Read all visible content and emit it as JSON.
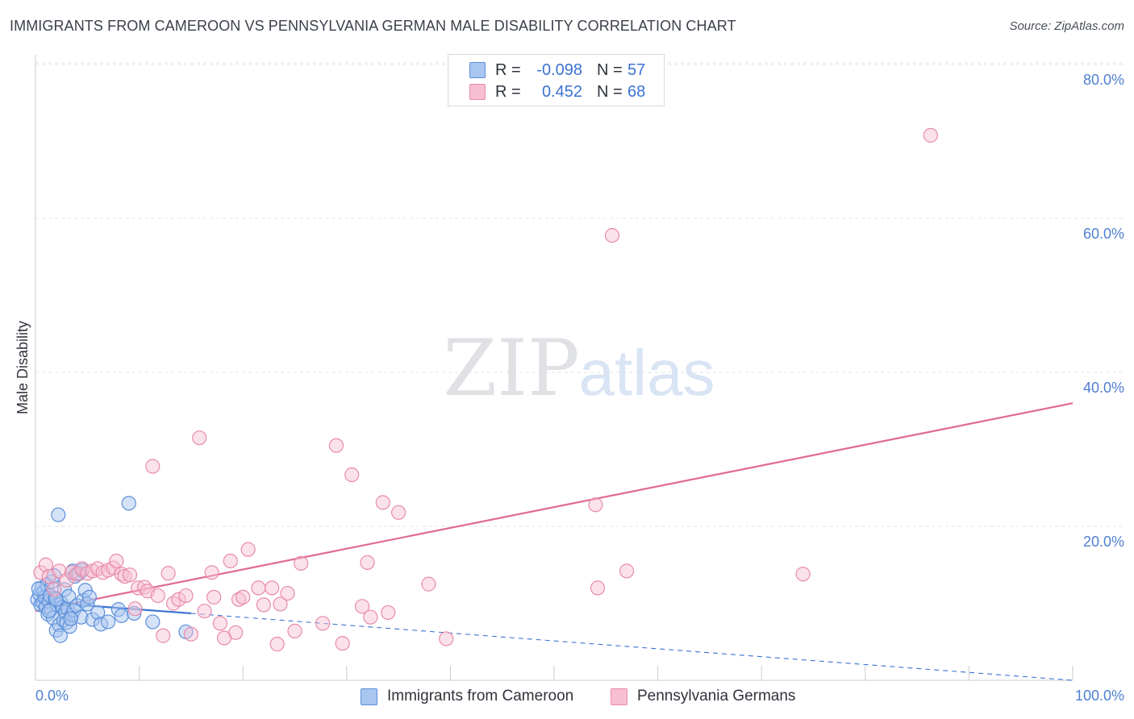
{
  "header": {
    "title": "IMMIGRANTS FROM CAMEROON VS PENNSYLVANIA GERMAN MALE DISABILITY CORRELATION CHART",
    "source": "Source: ZipAtlas.com"
  },
  "watermark": {
    "zip": "ZIP",
    "atlas": "atlas"
  },
  "legend": {
    "rows": [
      {
        "r_label": "R =",
        "r_value": "-0.098",
        "n_label": "N =",
        "n_value": "57"
      },
      {
        "r_label": "R =",
        "r_value": "0.452",
        "n_label": "N =",
        "n_value": "68"
      }
    ]
  },
  "bottom_legend": {
    "series1": "Immigrants from Cameroon",
    "series2": "Pennsylvania Germans"
  },
  "colors": {
    "cameroon_fill": "#a9c6f0",
    "cameroon_stroke": "#5b8fd9",
    "cameroon_line": "#3b73d3",
    "penn_fill": "#f7bfd1",
    "penn_stroke": "#e88aab",
    "penn_line": "#e06a94",
    "tick_text": "#4f7fd2"
  },
  "chart_data": {
    "type": "scatter",
    "title": "IMMIGRANTS FROM CAMEROON VS PENNSYLVANIA GERMAN MALE DISABILITY CORRELATION CHART",
    "xlabel": "",
    "ylabel": "Male Disability",
    "xlim": [
      0,
      100
    ],
    "ylim": [
      0,
      83
    ],
    "x_tick_labels": [
      {
        "value": 0,
        "label": "0.0%"
      },
      {
        "value": 100,
        "label": "100.0%"
      }
    ],
    "y_tick_labels": [
      {
        "value": 20,
        "label": "20.0%"
      },
      {
        "value": 40,
        "label": "40.0%"
      },
      {
        "value": 60,
        "label": "60.0%"
      },
      {
        "value": 80,
        "label": "80.0%"
      }
    ],
    "series": [
      {
        "name": "Immigrants from Cameroon",
        "r": -0.098,
        "n": 57,
        "trend_solid": {
          "x": [
            0,
            15
          ],
          "y": [
            10.2,
            8.7
          ]
        },
        "trend_dashed": {
          "x": [
            15,
            100
          ],
          "y": [
            8.7,
            0.0
          ]
        },
        "points": [
          [
            0.2,
            10.5
          ],
          [
            0.4,
            11.2
          ],
          [
            0.5,
            9.8
          ],
          [
            0.6,
            12.0
          ],
          [
            0.7,
            10.1
          ],
          [
            0.8,
            11.5
          ],
          [
            0.9,
            10.8
          ],
          [
            1.0,
            9.5
          ],
          [
            1.1,
            12.4
          ],
          [
            1.2,
            8.6
          ],
          [
            1.3,
            10.3
          ],
          [
            1.4,
            11.0
          ],
          [
            1.5,
            9.2
          ],
          [
            1.6,
            12.8
          ],
          [
            1.7,
            8.1
          ],
          [
            1.8,
            13.6
          ],
          [
            1.9,
            10.7
          ],
          [
            2.0,
            6.5
          ],
          [
            2.1,
            9.8
          ],
          [
            2.2,
            21.5
          ],
          [
            2.3,
            7.2
          ],
          [
            2.4,
            5.8
          ],
          [
            2.5,
            10.0
          ],
          [
            2.6,
            9.5
          ],
          [
            2.7,
            7.8
          ],
          [
            2.8,
            11.8
          ],
          [
            2.9,
            8.9
          ],
          [
            3.0,
            7.5
          ],
          [
            3.1,
            9.3
          ],
          [
            3.2,
            10.9
          ],
          [
            3.3,
            7.0
          ],
          [
            3.5,
            8.5
          ],
          [
            3.6,
            14.2
          ],
          [
            3.7,
            9.1
          ],
          [
            3.8,
            13.5
          ],
          [
            4.0,
            9.7
          ],
          [
            4.2,
            13.9
          ],
          [
            4.4,
            8.2
          ],
          [
            4.5,
            14.3
          ],
          [
            4.6,
            10.4
          ],
          [
            4.8,
            11.7
          ],
          [
            5.0,
            9.9
          ],
          [
            5.2,
            10.8
          ],
          [
            5.5,
            7.9
          ],
          [
            6.0,
            8.8
          ],
          [
            6.3,
            7.3
          ],
          [
            7.0,
            7.6
          ],
          [
            8.0,
            9.2
          ],
          [
            8.3,
            8.4
          ],
          [
            9.0,
            23.0
          ],
          [
            9.5,
            8.7
          ],
          [
            11.3,
            7.6
          ],
          [
            14.5,
            6.3
          ],
          [
            1.3,
            9.0
          ],
          [
            0.3,
            11.9
          ],
          [
            3.4,
            8.0
          ],
          [
            2.0,
            10.5
          ]
        ]
      },
      {
        "name": "Pennsylvania Germans",
        "r": 0.452,
        "n": 68,
        "trend": {
          "x": [
            0,
            100
          ],
          "y": [
            9.0,
            36.0
          ]
        },
        "points": [
          [
            0.5,
            14.0
          ],
          [
            1.0,
            15.0
          ],
          [
            1.3,
            13.5
          ],
          [
            1.8,
            11.8
          ],
          [
            2.3,
            14.2
          ],
          [
            3.0,
            13.0
          ],
          [
            3.5,
            14.0
          ],
          [
            4.0,
            13.8
          ],
          [
            4.5,
            14.5
          ],
          [
            5.0,
            13.9
          ],
          [
            5.5,
            14.2
          ],
          [
            6.0,
            14.5
          ],
          [
            6.5,
            14.0
          ],
          [
            7.0,
            14.3
          ],
          [
            7.5,
            14.6
          ],
          [
            7.8,
            15.5
          ],
          [
            8.3,
            13.8
          ],
          [
            8.6,
            13.5
          ],
          [
            9.1,
            13.7
          ],
          [
            9.6,
            9.3
          ],
          [
            9.9,
            12.0
          ],
          [
            10.5,
            12.1
          ],
          [
            10.8,
            11.6
          ],
          [
            11.3,
            27.8
          ],
          [
            11.8,
            11.0
          ],
          [
            12.3,
            5.8
          ],
          [
            12.8,
            13.9
          ],
          [
            13.3,
            10.0
          ],
          [
            13.8,
            10.5
          ],
          [
            14.5,
            11.0
          ],
          [
            15.0,
            6.0
          ],
          [
            15.8,
            31.5
          ],
          [
            16.3,
            9.0
          ],
          [
            17.0,
            14.0
          ],
          [
            17.2,
            10.8
          ],
          [
            17.8,
            7.4
          ],
          [
            18.2,
            5.5
          ],
          [
            18.8,
            15.5
          ],
          [
            19.3,
            6.2
          ],
          [
            19.6,
            10.5
          ],
          [
            20.0,
            10.8
          ],
          [
            20.5,
            17.0
          ],
          [
            21.5,
            12.0
          ],
          [
            22.0,
            9.8
          ],
          [
            22.8,
            12.0
          ],
          [
            23.3,
            4.7
          ],
          [
            23.6,
            9.9
          ],
          [
            24.3,
            11.3
          ],
          [
            25.0,
            6.4
          ],
          [
            25.6,
            15.2
          ],
          [
            29.0,
            30.5
          ],
          [
            29.6,
            4.8
          ],
          [
            30.5,
            26.7
          ],
          [
            31.5,
            9.6
          ],
          [
            32.0,
            15.3
          ],
          [
            32.3,
            8.2
          ],
          [
            33.5,
            23.1
          ],
          [
            34.0,
            8.8
          ],
          [
            35.0,
            21.8
          ],
          [
            37.9,
            12.5
          ],
          [
            39.6,
            5.4
          ],
          [
            54.0,
            22.8
          ],
          [
            54.2,
            12.0
          ],
          [
            55.6,
            57.8
          ],
          [
            57.0,
            14.2
          ],
          [
            74.0,
            13.8
          ],
          [
            86.3,
            70.8
          ],
          [
            27.7,
            7.4
          ]
        ]
      }
    ]
  }
}
